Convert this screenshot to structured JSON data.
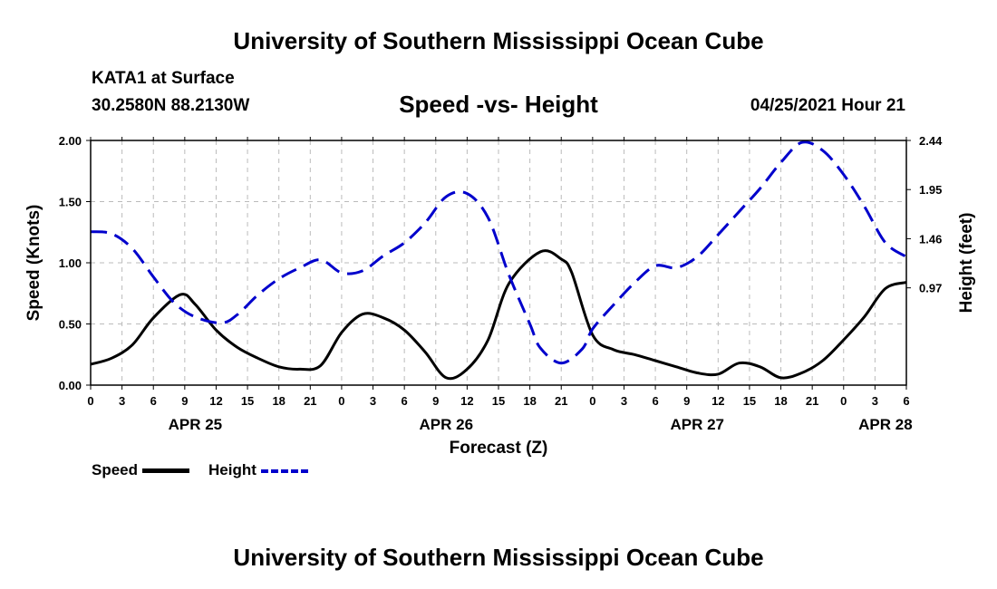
{
  "header": {
    "title": "University of Southern Mississippi Ocean Cube",
    "station": "KATA1 at Surface",
    "coords": "30.2580N  88.2130W",
    "chart_title": "Speed -vs- Height",
    "datetime": "04/25/2021 Hour 21"
  },
  "footer": {
    "title": "University of Southern Mississippi Ocean Cube"
  },
  "legend": {
    "speed_label": "Speed",
    "height_label": "Height"
  },
  "colors": {
    "speed": "#000000",
    "height": "#0000cc",
    "grid": "#bbbbbb"
  },
  "chart_data": {
    "type": "line",
    "title": "Speed -vs- Height",
    "xlabel": "Forecast (Z)",
    "ylabel": "Speed (Knots)",
    "y2label": "Height (feet)",
    "x_range_hours": [
      0,
      78
    ],
    "x_tick_labels": [
      "0",
      "3",
      "6",
      "9",
      "12",
      "15",
      "18",
      "21",
      "0",
      "3",
      "6",
      "9",
      "12",
      "15",
      "18",
      "21",
      "0",
      "3",
      "6",
      "9",
      "12",
      "15",
      "18",
      "21",
      "0",
      "3",
      "6"
    ],
    "day_labels": [
      {
        "label": "APR 25",
        "hour": 10
      },
      {
        "label": "APR 26",
        "hour": 34
      },
      {
        "label": "APR 27",
        "hour": 58
      },
      {
        "label": "APR 28",
        "hour": 76
      }
    ],
    "ylim": [
      0,
      2.0
    ],
    "y_ticks": [
      "0.00",
      "0.50",
      "1.00",
      "1.50",
      "2.00"
    ],
    "y2lim": [
      0,
      2.44
    ],
    "y2_ticks": [
      0.97,
      1.46,
      1.95,
      2.44
    ],
    "y2_tick_labels": [
      "0.97",
      "1.46",
      "1.95",
      "2.44"
    ],
    "grid": true,
    "series": [
      {
        "name": "Speed",
        "axis": "left",
        "style": "solid",
        "points": [
          [
            0,
            0.17
          ],
          [
            2,
            0.22
          ],
          [
            4,
            0.33
          ],
          [
            6,
            0.55
          ],
          [
            8.6,
            0.74
          ],
          [
            10,
            0.66
          ],
          [
            12,
            0.45
          ],
          [
            14,
            0.31
          ],
          [
            16,
            0.22
          ],
          [
            18,
            0.15
          ],
          [
            20,
            0.13
          ],
          [
            22,
            0.16
          ],
          [
            24,
            0.43
          ],
          [
            26,
            0.58
          ],
          [
            28,
            0.55
          ],
          [
            30,
            0.45
          ],
          [
            32,
            0.27
          ],
          [
            34,
            0.06
          ],
          [
            36,
            0.13
          ],
          [
            38,
            0.37
          ],
          [
            40,
            0.83
          ],
          [
            43,
            1.09
          ],
          [
            45,
            1.03
          ],
          [
            46,
            0.92
          ],
          [
            48,
            0.41
          ],
          [
            50,
            0.29
          ],
          [
            52,
            0.25
          ],
          [
            54,
            0.2
          ],
          [
            56,
            0.15
          ],
          [
            58,
            0.1
          ],
          [
            60,
            0.09
          ],
          [
            62,
            0.18
          ],
          [
            64,
            0.15
          ],
          [
            66,
            0.06
          ],
          [
            68,
            0.1
          ],
          [
            70,
            0.2
          ],
          [
            72,
            0.37
          ],
          [
            74,
            0.56
          ],
          [
            76,
            0.79
          ],
          [
            78,
            0.84
          ]
        ]
      },
      {
        "name": "Height",
        "axis": "right",
        "style": "dashed",
        "points": [
          [
            0,
            1.53
          ],
          [
            2,
            1.51
          ],
          [
            4,
            1.36
          ],
          [
            6,
            1.08
          ],
          [
            8,
            0.82
          ],
          [
            10,
            0.68
          ],
          [
            12.5,
            0.62
          ],
          [
            14,
            0.7
          ],
          [
            16,
            0.9
          ],
          [
            18,
            1.06
          ],
          [
            20,
            1.17
          ],
          [
            22,
            1.25
          ],
          [
            24,
            1.12
          ],
          [
            26,
            1.14
          ],
          [
            28,
            1.29
          ],
          [
            30,
            1.42
          ],
          [
            32,
            1.62
          ],
          [
            34,
            1.88
          ],
          [
            36,
            1.91
          ],
          [
            38,
            1.67
          ],
          [
            40,
            1.1
          ],
          [
            42,
            0.61
          ],
          [
            43,
            0.37
          ],
          [
            45,
            0.22
          ],
          [
            47,
            0.36
          ],
          [
            48,
            0.56
          ],
          [
            50,
            0.8
          ],
          [
            52,
            1.02
          ],
          [
            54,
            1.19
          ],
          [
            56,
            1.17
          ],
          [
            58,
            1.28
          ],
          [
            60,
            1.5
          ],
          [
            62,
            1.73
          ],
          [
            64,
            1.96
          ],
          [
            66,
            2.22
          ],
          [
            68,
            2.42
          ],
          [
            70,
            2.34
          ],
          [
            72,
            2.1
          ],
          [
            74,
            1.78
          ],
          [
            76,
            1.42
          ],
          [
            78,
            1.28
          ]
        ]
      }
    ]
  }
}
